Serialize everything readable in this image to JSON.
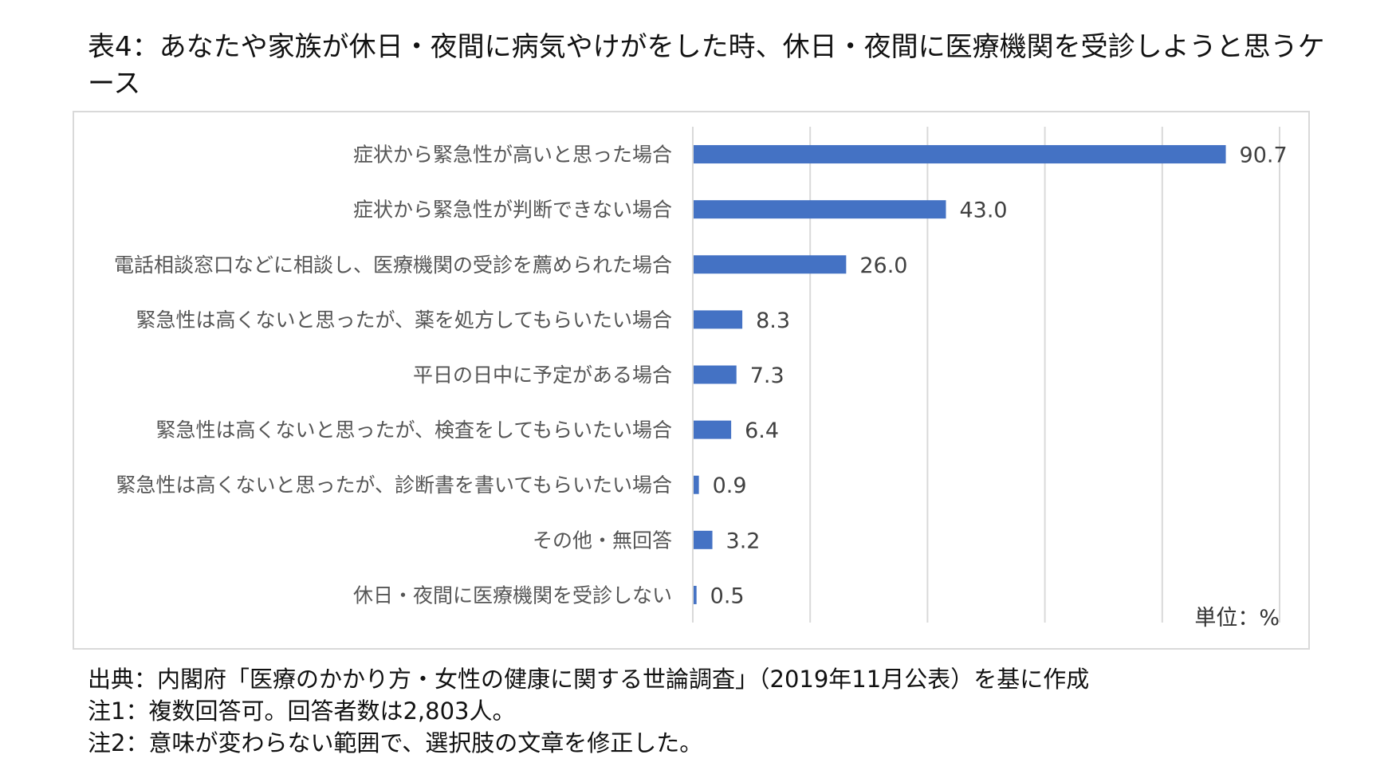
{
  "title": "表4：あなたや家族が休日・夜間に病気やけがをした時、休日・夜間に医療機関を受診しようと思うケース",
  "chart_data": {
    "type": "bar",
    "orientation": "horizontal",
    "categories": [
      "症状から緊急性が高いと思った場合",
      "症状から緊急性が判断できない場合",
      "電話相談窓口などに相談し、医療機関の受診を薦められた場合",
      "緊急性は高くないと思ったが、薬を処方してもらいたい場合",
      "平日の日中に予定がある場合",
      "緊急性は高くないと思ったが、検査をしてもらいたい場合",
      "緊急性は高くないと思ったが、診断書を書いてもらいたい場合",
      "その他・無回答",
      "休日・夜間に医療機関を受診しない"
    ],
    "values": [
      90.7,
      43.0,
      26.0,
      8.3,
      7.3,
      6.4,
      0.9,
      3.2,
      0.5
    ],
    "value_labels": [
      "90.7",
      "43.0",
      "26.0",
      "8.3",
      "7.3",
      "6.4",
      "0.9",
      "3.2",
      "0.5"
    ],
    "xlim": [
      0,
      100
    ],
    "grid_step": 20,
    "grid": true,
    "bar_color": "#4472c4",
    "unit": "単位：%"
  },
  "notes": [
    "出典：内閣府「医療のかかり方・女性の健康に関する世論調査」（2019年11月公表）を基に作成",
    "注1：複数回答可。回答者数は2,803人。",
    "注2：意味が変わらない範囲で、選択肢の文章を修正した。"
  ]
}
